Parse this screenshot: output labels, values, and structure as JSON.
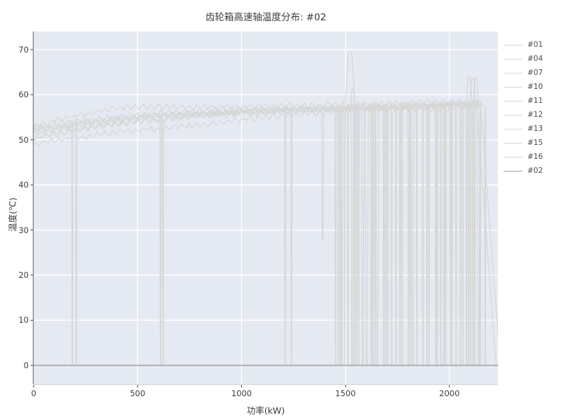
{
  "chart_data": {
    "type": "line",
    "title": "齿轮箱高速轴温度分布: #02",
    "xlabel": "功率(kW)",
    "ylabel": "温度(℃)",
    "xlim": [
      0,
      2233
    ],
    "ylim": [
      -4.2,
      74
    ],
    "xticks": [
      0,
      500,
      1000,
      1500,
      2000
    ],
    "yticks": [
      0,
      10,
      20,
      30,
      40,
      50,
      60,
      70
    ],
    "grid": true,
    "legend_position": "right-outside",
    "plot_bg_color": "#e5eaf2",
    "grid_color": "#ffffff",
    "spine_color": "#81868f",
    "tick_color": "#3d3d3d",
    "default_line_color": "#d6d6d6",
    "highlight_line_color": "#a3a3a3",
    "noise_amplitude": 0.8,
    "series": [
      {
        "name": "#01",
        "color": "#d6d6d6",
        "trend": [
          [
            0,
            53
          ],
          [
            150,
            54.8
          ],
          [
            300,
            56.3
          ],
          [
            450,
            57.2
          ],
          [
            700,
            57.3
          ],
          [
            1000,
            57.4
          ],
          [
            1300,
            57.6
          ],
          [
            1600,
            58
          ],
          [
            1900,
            58.3
          ],
          [
            2160,
            58.2
          ]
        ],
        "spikes": [
          [
            1522,
            69.4,
            24
          ]
        ],
        "drops": [
          [
            1563,
            3
          ],
          [
            1642,
            3
          ],
          [
            1812,
            3
          ],
          [
            1982,
            3
          ],
          [
            2064,
            3
          ]
        ]
      },
      {
        "name": "#04",
        "color": "#d6d6d6",
        "trend": [
          [
            0,
            52
          ],
          [
            200,
            53.5
          ],
          [
            400,
            54.6
          ],
          [
            600,
            55.5
          ],
          [
            800,
            56
          ],
          [
            1000,
            56.5
          ],
          [
            1300,
            57
          ],
          [
            1600,
            57.4
          ],
          [
            1900,
            57.8
          ],
          [
            2130,
            58
          ]
        ],
        "spikes": [
          [
            2112,
            63.5,
            16
          ]
        ],
        "drops": [
          [
            1210,
            3
          ],
          [
            1476,
            3
          ],
          [
            1624,
            3
          ],
          [
            1762,
            3
          ],
          [
            1934,
            3
          ],
          [
            2082,
            3
          ]
        ],
        "end_zero": 2225
      },
      {
        "name": "#07",
        "color": "#d6d6d6",
        "trend": [
          [
            0,
            50.2
          ],
          [
            200,
            52
          ],
          [
            400,
            53.6
          ],
          [
            600,
            54.6
          ],
          [
            800,
            55.4
          ],
          [
            1000,
            56
          ],
          [
            1300,
            56.6
          ],
          [
            1600,
            57
          ],
          [
            1900,
            57.5
          ],
          [
            2140,
            57.8
          ]
        ],
        "spikes": [],
        "drops": [
          [
            610,
            3
          ],
          [
            1452,
            3
          ],
          [
            1532,
            6
          ],
          [
            1703,
            3
          ],
          [
            1872,
            3
          ],
          [
            2012,
            3
          ],
          [
            2122,
            3
          ]
        ]
      },
      {
        "name": "#10",
        "color": "#d6d6d6",
        "trend": [
          [
            0,
            49
          ],
          [
            200,
            50.6
          ],
          [
            400,
            51.6
          ],
          [
            600,
            52.4
          ],
          [
            800,
            53.4
          ],
          [
            1000,
            54.4
          ],
          [
            1200,
            55.4
          ],
          [
            1400,
            56
          ],
          [
            1700,
            56.6
          ],
          [
            2000,
            57
          ],
          [
            2120,
            57.4
          ]
        ],
        "spikes": [],
        "drops": [
          [
            1496,
            3
          ],
          [
            1583,
            6
          ],
          [
            1722,
            3
          ],
          [
            1902,
            3
          ],
          [
            2052,
            3
          ],
          [
            2148,
            3
          ]
        ]
      },
      {
        "name": "#11",
        "color": "#d6d6d6",
        "trend": [
          [
            0,
            52.4
          ],
          [
            250,
            54
          ],
          [
            500,
            55
          ],
          [
            750,
            55.8
          ],
          [
            1000,
            56.3
          ],
          [
            1300,
            56.8
          ],
          [
            1600,
            57.2
          ],
          [
            1900,
            57.6
          ],
          [
            2140,
            58
          ]
        ],
        "spikes": [
          [
            1390,
            28,
            5
          ]
        ],
        "drops": [
          [
            186,
            3
          ],
          [
            1511,
            3
          ],
          [
            1653,
            7
          ],
          [
            1803,
            3
          ],
          [
            1958,
            3
          ],
          [
            2102,
            3
          ]
        ]
      },
      {
        "name": "#12",
        "color": "#d6d6d6",
        "trend": [
          [
            0,
            53
          ],
          [
            250,
            54.5
          ],
          [
            500,
            55.5
          ],
          [
            750,
            56.2
          ],
          [
            1000,
            56.8
          ],
          [
            1300,
            57
          ],
          [
            1600,
            57.4
          ],
          [
            1900,
            57.9
          ],
          [
            2130,
            58.2
          ]
        ],
        "spikes": [
          [
            2095,
            64,
            14
          ]
        ],
        "drops": [
          [
            205,
            3
          ],
          [
            1543,
            3
          ],
          [
            1684,
            3
          ],
          [
            1843,
            3
          ],
          [
            2003,
            3
          ],
          [
            2140,
            6
          ]
        ]
      },
      {
        "name": "#13",
        "color": "#d6d6d6",
        "trend": [
          [
            0,
            52
          ],
          [
            250,
            53.8
          ],
          [
            500,
            55
          ],
          [
            750,
            55.7
          ],
          [
            1000,
            56.2
          ],
          [
            1300,
            56.8
          ],
          [
            1600,
            57.1
          ],
          [
            1900,
            57.5
          ],
          [
            2150,
            57.8
          ]
        ],
        "spikes": [],
        "drops": [
          [
            1240,
            3
          ],
          [
            1466,
            3
          ],
          [
            1602,
            8
          ],
          [
            1743,
            3
          ],
          [
            1892,
            3
          ],
          [
            2032,
            3
          ],
          [
            2172,
            3
          ]
        ]
      },
      {
        "name": "#15",
        "color": "#d6d6d6",
        "trend": [
          [
            0,
            51.5
          ],
          [
            250,
            53.2
          ],
          [
            500,
            54.6
          ],
          [
            750,
            55.4
          ],
          [
            1000,
            56
          ],
          [
            1300,
            56.6
          ],
          [
            1600,
            57
          ],
          [
            1900,
            57.4
          ],
          [
            2135,
            57.7
          ]
        ],
        "spikes": [
          [
            1535,
            61.3,
            10
          ]
        ],
        "drops": [
          [
            1553,
            3
          ],
          [
            1693,
            3
          ],
          [
            1823,
            6
          ],
          [
            1973,
            3
          ],
          [
            2113,
            3
          ]
        ]
      },
      {
        "name": "#16",
        "color": "#d6d6d6",
        "trend": [
          [
            0,
            50.6
          ],
          [
            250,
            52.6
          ],
          [
            500,
            54
          ],
          [
            750,
            55
          ],
          [
            1000,
            55.7
          ],
          [
            1300,
            56.4
          ],
          [
            1600,
            56.9
          ],
          [
            1900,
            57.3
          ],
          [
            2100,
            58
          ],
          [
            2150,
            58.2
          ]
        ],
        "spikes": [
          [
            2128,
            63.8,
            12
          ]
        ],
        "drops": [
          [
            622,
            3
          ],
          [
            1482,
            3
          ],
          [
            1632,
            3
          ],
          [
            1772,
            3
          ],
          [
            1942,
            3
          ],
          [
            2092,
            3
          ]
        ],
        "end_zero": 2245
      },
      {
        "name": "#02",
        "color": "#a3a3a3",
        "flat": true,
        "trend": [
          [
            0,
            0
          ],
          [
            2233,
            0
          ]
        ],
        "spikes": [],
        "drops": []
      }
    ]
  }
}
